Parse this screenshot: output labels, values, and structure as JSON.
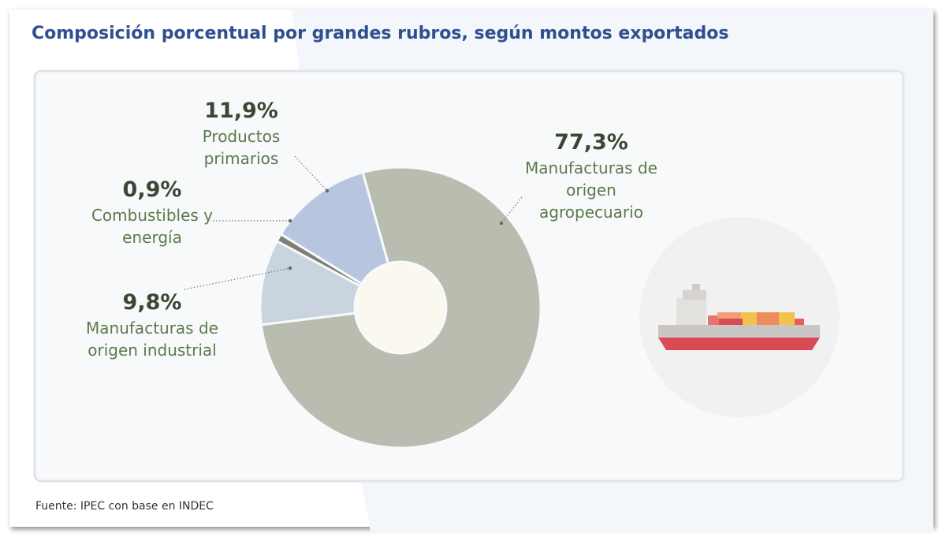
{
  "chart_data": {
    "type": "donut",
    "title": "Composición porcentual por grandes rubros, según montos exportados",
    "categories": [
      "Manufacturas de origen agropecuario",
      "Manufacturas de origen industrial",
      "Combustibles y energía",
      "Productos primarios"
    ],
    "values": [
      77.3,
      9.8,
      0.9,
      11.9
    ],
    "value_labels": [
      "77,3%",
      "9,8%",
      "0,9%",
      "11,9%"
    ],
    "colors": [
      "#b8bdb0",
      "#c9d4de",
      "#7d7f73",
      "#b7c5de"
    ],
    "source": "Fuente: IPEC con base en INDEC"
  }
}
